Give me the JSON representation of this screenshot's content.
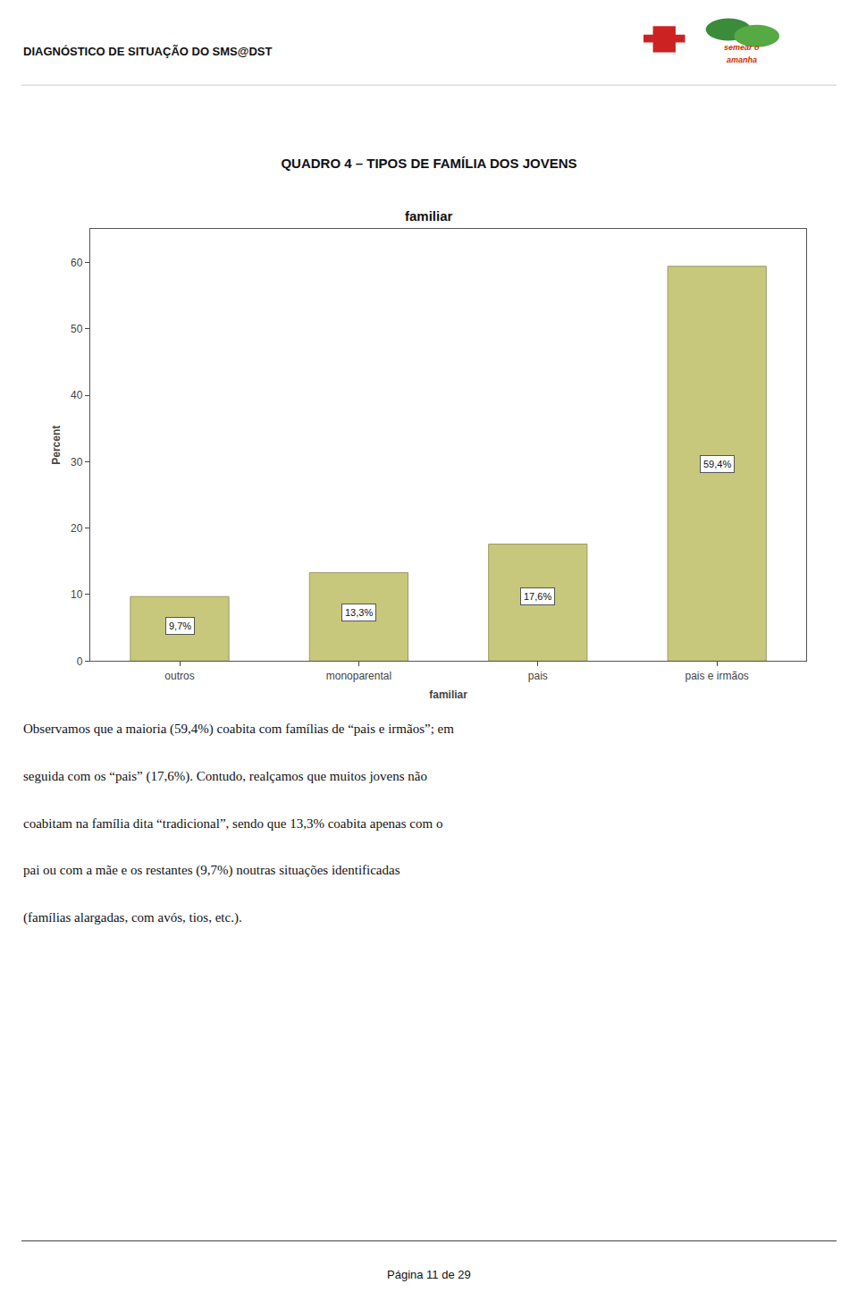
{
  "page_title": "DIAGNÓSTICO DE SITUAÇÃO DO SMS@DST",
  "logo_text": [
    "semear o",
    "amanha"
  ],
  "chart_data": {
    "type": "bar",
    "title": "QUADRO 4 – TIPOS DE FAMÍLIA DOS JOVENS",
    "subtitle": "familiar",
    "xlabel": "familiar",
    "ylabel": "Percent",
    "categories": [
      "outros",
      "monoparental",
      "pais",
      "pais e irmãos"
    ],
    "values": [
      9.7,
      13.3,
      17.6,
      59.4
    ],
    "value_labels": [
      "9,7%",
      "13,3%",
      "17,6%",
      "59,4%"
    ],
    "data_labels": true,
    "color": "#c8c87c",
    "ylim": [
      0,
      65
    ],
    "yticks": [
      0,
      10,
      20,
      30,
      40,
      50,
      60
    ],
    "grid": false
  },
  "body_lines": [
    "Observamos que a maioria (59,4%) coabita com famílias de “pais e irmãos”; em",
    "seguida com os “pais” (17,6%). Contudo, realçamos que muitos jovens não",
    "coabitam na família dita “tradicional”, sendo que 13,3% coabita apenas com o",
    "pai ou com a mãe e os restantes (9,7%) noutras situações identificadas",
    "(famílias alargadas, com avós, tios, etc.)."
  ],
  "footer_text": "Página 11 de 29"
}
